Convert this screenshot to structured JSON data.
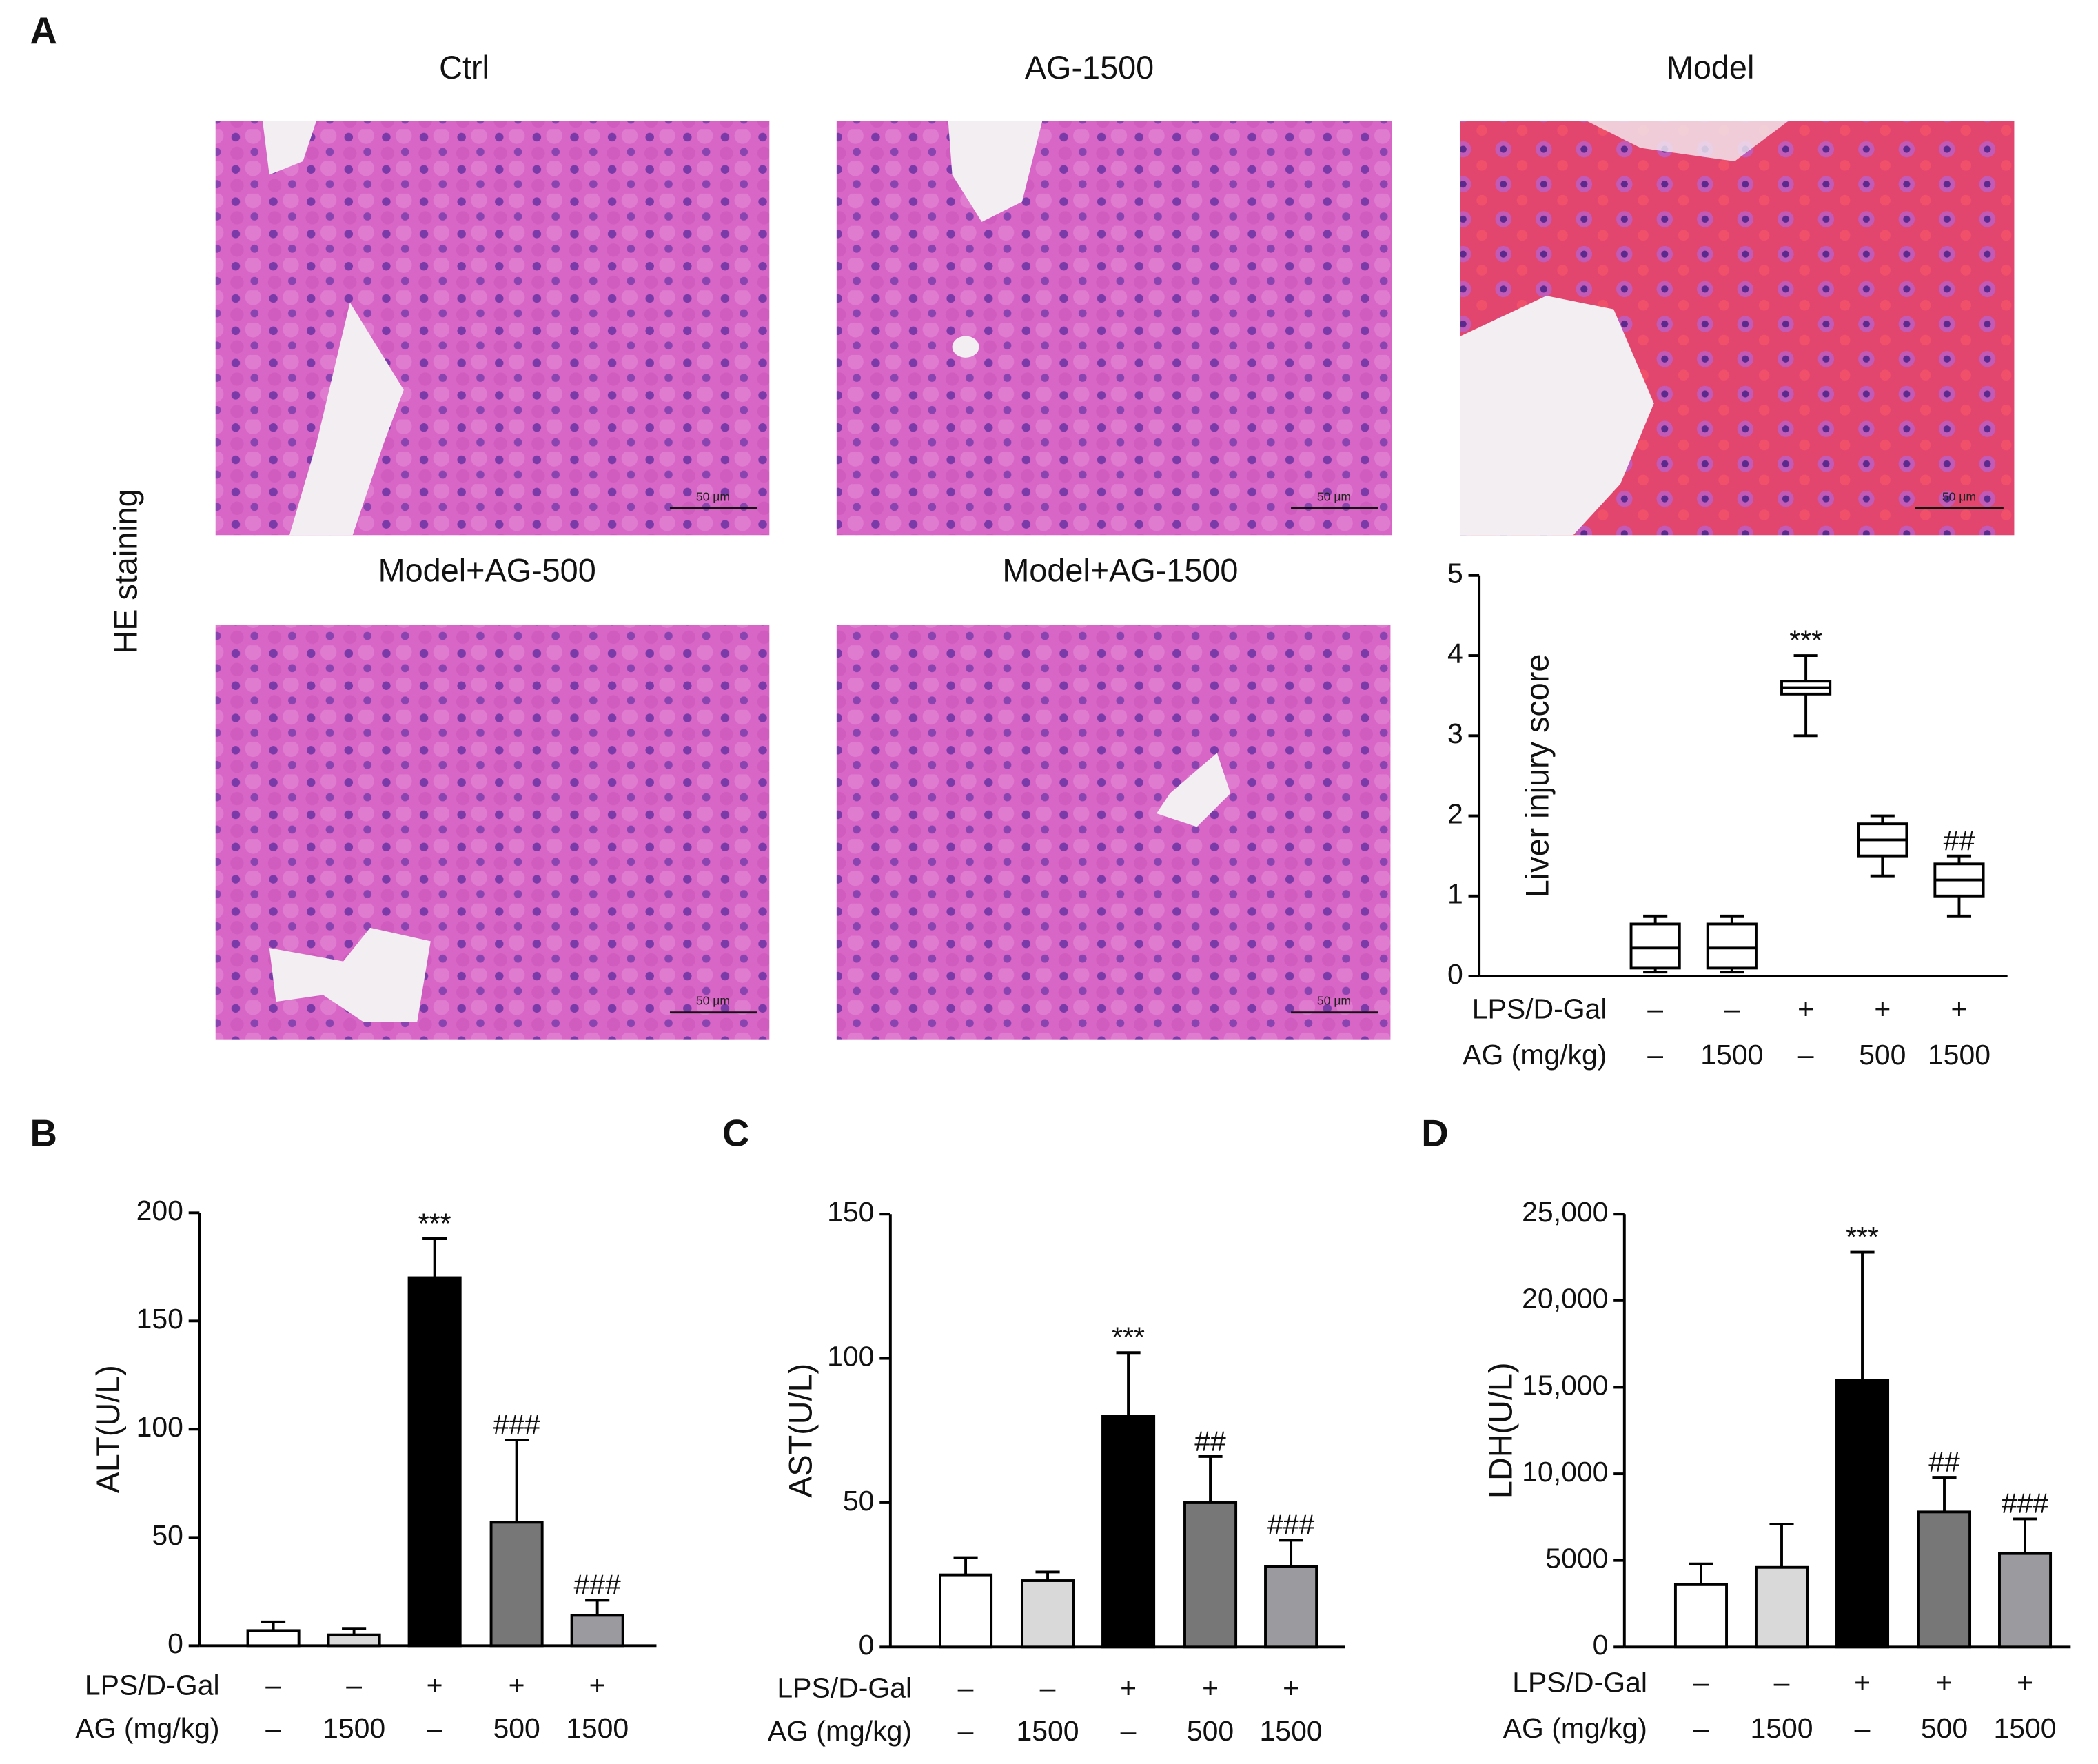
{
  "figure": {
    "panel_label": "A",
    "side_label": "HE staining",
    "images": [
      {
        "title": "Ctrl",
        "scale_bar": "50 μm"
      },
      {
        "title": "AG-1500",
        "scale_bar": "50 μm"
      },
      {
        "title": "Model",
        "scale_bar": "50 μm"
      },
      {
        "title": "Model+AG-500",
        "scale_bar": "50 μm"
      },
      {
        "title": "Model+AG-1500",
        "scale_bar": "50 μm"
      }
    ]
  },
  "chart_data": [
    {
      "type": "box",
      "y_label": "Liver injury score",
      "rows": [
        {
          "label": "LPS/D-Gal",
          "values": [
            "–",
            "–",
            "+",
            "+",
            "+"
          ]
        },
        {
          "label": "AG (mg/kg)",
          "values": [
            "–",
            "1500",
            "–",
            "500",
            "1500"
          ]
        }
      ],
      "min": [
        0.05,
        0.05,
        3.0,
        1.25,
        0.75
      ],
      "q1": [
        0.1,
        0.1,
        3.52,
        1.5,
        1.0
      ],
      "median": [
        0.35,
        0.35,
        3.6,
        1.7,
        1.2
      ],
      "q3": [
        0.65,
        0.65,
        3.68,
        1.9,
        1.4
      ],
      "max": [
        0.75,
        0.75,
        4.0,
        2.0,
        1.5
      ],
      "annotations": [
        null,
        null,
        "***",
        null,
        "##"
      ],
      "ylim": [
        0,
        5
      ],
      "yticks": [
        0,
        1,
        2,
        3,
        4,
        5
      ]
    },
    {
      "type": "bar",
      "panel_label": "B",
      "y_label": "ALT(U/L)",
      "rows": [
        {
          "label": "LPS/D-Gal",
          "values": [
            "–",
            "–",
            "+",
            "+",
            "+"
          ]
        },
        {
          "label": "AG (mg/kg)",
          "values": [
            "–",
            "1500",
            "–",
            "500",
            "1500"
          ]
        }
      ],
      "values": [
        7,
        5,
        170,
        57,
        14
      ],
      "errors": [
        4,
        3,
        18,
        38,
        7
      ],
      "colors": [
        "#ffffff",
        "#d9d9d9",
        "#000000",
        "#777777",
        "#9a9a9f"
      ],
      "annotations": [
        null,
        null,
        "***",
        "###",
        "###"
      ],
      "ylim": [
        0,
        200
      ],
      "yticks": [
        0,
        50,
        100,
        150,
        200
      ]
    },
    {
      "type": "bar",
      "panel_label": "C",
      "y_label": "AST(U/L)",
      "rows": [
        {
          "label": "LPS/D-Gal",
          "values": [
            "–",
            "–",
            "+",
            "+",
            "+"
          ]
        },
        {
          "label": "AG (mg/kg)",
          "values": [
            "–",
            "1500",
            "–",
            "500",
            "1500"
          ]
        }
      ],
      "values": [
        25,
        23,
        80,
        50,
        28
      ],
      "errors": [
        6,
        3,
        22,
        16,
        9
      ],
      "colors": [
        "#ffffff",
        "#d9d9d9",
        "#000000",
        "#777777",
        "#9a9a9f"
      ],
      "annotations": [
        null,
        null,
        "***",
        "##",
        "###"
      ],
      "ylim": [
        0,
        150
      ],
      "yticks": [
        0,
        50,
        100,
        150
      ]
    },
    {
      "type": "bar",
      "panel_label": "D",
      "y_label": "LDH(U/L)",
      "rows": [
        {
          "label": "LPS/D-Gal",
          "values": [
            "–",
            "–",
            "+",
            "+",
            "+"
          ]
        },
        {
          "label": "AG (mg/kg)",
          "values": [
            "–",
            "1500",
            "–",
            "500",
            "1500"
          ]
        }
      ],
      "values": [
        3600,
        4600,
        15400,
        7800,
        5400
      ],
      "errors": [
        1200,
        2500,
        7400,
        2000,
        2000
      ],
      "colors": [
        "#ffffff",
        "#d9d9d9",
        "#000000",
        "#777777",
        "#9a9a9f"
      ],
      "annotations": [
        null,
        null,
        "***",
        "##",
        "###"
      ],
      "ylim": [
        0,
        25000
      ],
      "yticks": [
        0,
        5000,
        {
          "value": 10000,
          "label": "10,000"
        },
        {
          "value": 15000,
          "label": "15,000"
        },
        {
          "value": 20000,
          "label": "20,000"
        },
        {
          "value": 25000,
          "label": "25,000"
        }
      ]
    }
  ]
}
